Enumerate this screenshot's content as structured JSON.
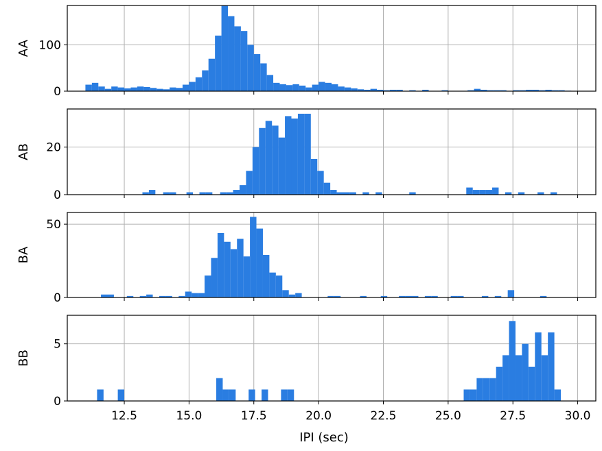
{
  "chart_data": {
    "type": "bar",
    "subtype": "histogram-stacked-panels",
    "shared_x_axis": true,
    "xlabel": "IPI (sec)",
    "xlim": [
      10.3,
      30.7
    ],
    "x_ticks": [
      12.5,
      15.0,
      17.5,
      20.0,
      22.5,
      25.0,
      27.5,
      30.0
    ],
    "x_tick_labels": [
      "12.5",
      "15.0",
      "17.5",
      "20.0",
      "22.5",
      "25.0",
      "27.5",
      "30.0"
    ],
    "bin_width": 0.25,
    "grid": true,
    "bar_color": "#2a7de1",
    "panels": [
      {
        "ylabel": "AA",
        "ylim": [
          0,
          185
        ],
        "y_ticks": [
          0,
          100
        ],
        "y_tick_labels": [
          "0",
          "100"
        ],
        "bins": [
          [
            11.0,
            14
          ],
          [
            11.25,
            18
          ],
          [
            11.5,
            10
          ],
          [
            11.75,
            5
          ],
          [
            12.0,
            10
          ],
          [
            12.25,
            8
          ],
          [
            12.5,
            6
          ],
          [
            12.75,
            8
          ],
          [
            13.0,
            10
          ],
          [
            13.25,
            9
          ],
          [
            13.5,
            7
          ],
          [
            13.75,
            5
          ],
          [
            14.0,
            4
          ],
          [
            14.25,
            8
          ],
          [
            14.5,
            7
          ],
          [
            14.75,
            14
          ],
          [
            15.0,
            20
          ],
          [
            15.25,
            30
          ],
          [
            15.5,
            45
          ],
          [
            15.75,
            70
          ],
          [
            16.0,
            120
          ],
          [
            16.25,
            184
          ],
          [
            16.5,
            162
          ],
          [
            16.75,
            140
          ],
          [
            17.0,
            130
          ],
          [
            17.25,
            100
          ],
          [
            17.5,
            80
          ],
          [
            17.75,
            60
          ],
          [
            18.0,
            35
          ],
          [
            18.25,
            18
          ],
          [
            18.5,
            15
          ],
          [
            18.75,
            13
          ],
          [
            19.0,
            15
          ],
          [
            19.25,
            12
          ],
          [
            19.5,
            8
          ],
          [
            19.75,
            14
          ],
          [
            20.0,
            20
          ],
          [
            20.25,
            18
          ],
          [
            20.5,
            15
          ],
          [
            20.75,
            10
          ],
          [
            21.0,
            8
          ],
          [
            21.25,
            6
          ],
          [
            21.5,
            4
          ],
          [
            21.75,
            3
          ],
          [
            22.0,
            5
          ],
          [
            22.25,
            3
          ],
          [
            22.5,
            2
          ],
          [
            22.75,
            3
          ],
          [
            23.0,
            3
          ],
          [
            23.5,
            2
          ],
          [
            24.0,
            3
          ],
          [
            24.75,
            2
          ],
          [
            25.75,
            2
          ],
          [
            26.0,
            5
          ],
          [
            26.25,
            3
          ],
          [
            26.5,
            2
          ],
          [
            26.75,
            2
          ],
          [
            27.0,
            2
          ],
          [
            27.5,
            2
          ],
          [
            27.75,
            2
          ],
          [
            28.0,
            3
          ],
          [
            28.25,
            3
          ],
          [
            28.5,
            2
          ],
          [
            28.75,
            3
          ],
          [
            29.0,
            2
          ],
          [
            29.25,
            2
          ],
          [
            29.5,
            1
          ]
        ]
      },
      {
        "ylabel": "AB",
        "ylim": [
          0,
          36
        ],
        "y_ticks": [
          0,
          20
        ],
        "y_tick_labels": [
          "0",
          "20"
        ],
        "bins": [
          [
            13.2,
            1
          ],
          [
            13.45,
            2
          ],
          [
            14.0,
            1
          ],
          [
            14.25,
            1
          ],
          [
            14.9,
            1
          ],
          [
            15.4,
            1
          ],
          [
            15.65,
            1
          ],
          [
            16.2,
            1
          ],
          [
            16.45,
            1
          ],
          [
            16.7,
            2
          ],
          [
            16.95,
            4
          ],
          [
            17.2,
            10
          ],
          [
            17.45,
            20
          ],
          [
            17.7,
            28
          ],
          [
            17.95,
            31
          ],
          [
            18.2,
            29
          ],
          [
            18.45,
            24
          ],
          [
            18.7,
            33
          ],
          [
            18.95,
            32
          ],
          [
            19.2,
            34
          ],
          [
            19.45,
            34
          ],
          [
            19.7,
            15
          ],
          [
            19.95,
            10
          ],
          [
            20.2,
            5
          ],
          [
            20.45,
            2
          ],
          [
            20.7,
            1
          ],
          [
            20.95,
            1
          ],
          [
            21.2,
            1
          ],
          [
            21.7,
            1
          ],
          [
            22.2,
            1
          ],
          [
            23.5,
            1
          ],
          [
            25.7,
            3
          ],
          [
            25.95,
            2
          ],
          [
            26.2,
            2
          ],
          [
            26.45,
            2
          ],
          [
            26.7,
            3
          ],
          [
            27.2,
            1
          ],
          [
            27.7,
            1
          ],
          [
            28.45,
            1
          ],
          [
            28.95,
            1
          ]
        ]
      },
      {
        "ylabel": "BA",
        "ylim": [
          0,
          58
        ],
        "y_ticks": [
          0,
          50
        ],
        "y_tick_labels": [
          "0",
          "50"
        ],
        "bins": [
          [
            11.6,
            2
          ],
          [
            11.85,
            2
          ],
          [
            12.6,
            1
          ],
          [
            13.1,
            1
          ],
          [
            13.35,
            2
          ],
          [
            13.85,
            1
          ],
          [
            14.1,
            1
          ],
          [
            14.6,
            1
          ],
          [
            14.85,
            4
          ],
          [
            15.1,
            3
          ],
          [
            15.35,
            3
          ],
          [
            15.6,
            15
          ],
          [
            15.85,
            27
          ],
          [
            16.1,
            44
          ],
          [
            16.35,
            38
          ],
          [
            16.6,
            33
          ],
          [
            16.85,
            40
          ],
          [
            17.1,
            28
          ],
          [
            17.35,
            55
          ],
          [
            17.6,
            47
          ],
          [
            17.85,
            29
          ],
          [
            18.1,
            17
          ],
          [
            18.35,
            15
          ],
          [
            18.6,
            5
          ],
          [
            18.85,
            2
          ],
          [
            19.1,
            3
          ],
          [
            20.35,
            1
          ],
          [
            20.6,
            1
          ],
          [
            21.6,
            1
          ],
          [
            22.4,
            1
          ],
          [
            23.1,
            1
          ],
          [
            23.35,
            1
          ],
          [
            23.6,
            1
          ],
          [
            24.1,
            1
          ],
          [
            24.35,
            1
          ],
          [
            25.1,
            1
          ],
          [
            25.35,
            1
          ],
          [
            26.3,
            1
          ],
          [
            26.8,
            1
          ],
          [
            27.3,
            5
          ],
          [
            28.55,
            1
          ]
        ]
      },
      {
        "ylabel": "BB",
        "ylim": [
          0,
          7.5
        ],
        "y_ticks": [
          0,
          5
        ],
        "y_tick_labels": [
          "0",
          "5"
        ],
        "bins": [
          [
            11.45,
            1
          ],
          [
            12.25,
            1
          ],
          [
            16.05,
            2
          ],
          [
            16.3,
            1
          ],
          [
            16.55,
            1
          ],
          [
            17.3,
            1
          ],
          [
            17.8,
            1
          ],
          [
            18.55,
            1
          ],
          [
            18.8,
            1
          ],
          [
            25.6,
            1
          ],
          [
            25.85,
            1
          ],
          [
            26.1,
            2
          ],
          [
            26.35,
            2
          ],
          [
            26.6,
            2
          ],
          [
            26.85,
            3
          ],
          [
            27.1,
            4
          ],
          [
            27.35,
            7
          ],
          [
            27.6,
            4
          ],
          [
            27.85,
            5
          ],
          [
            28.1,
            3
          ],
          [
            28.35,
            6
          ],
          [
            28.6,
            4
          ],
          [
            28.85,
            6
          ],
          [
            29.1,
            1
          ]
        ]
      }
    ]
  }
}
